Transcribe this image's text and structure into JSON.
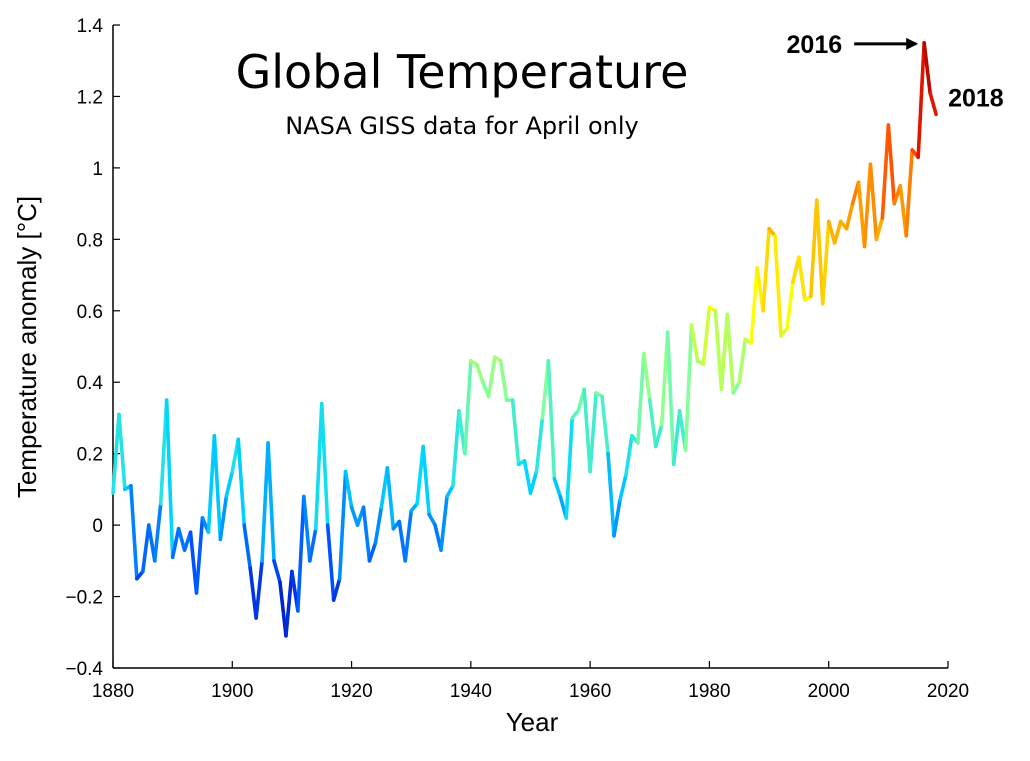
{
  "chart_data": {
    "type": "line",
    "title": "Global Temperature",
    "subtitle": "NASA GISS data for April only",
    "xlabel": "Year",
    "ylabel": "Temperature anomaly [°C]",
    "xlim": [
      1880,
      2020
    ],
    "ylim": [
      -0.4,
      1.4
    ],
    "xticks": [
      1880,
      1900,
      1920,
      1940,
      1960,
      1980,
      2000,
      2020
    ],
    "xtick_labels": [
      "1880",
      "1900",
      "1920",
      "1940",
      "1960",
      "1980",
      "2000",
      "2020"
    ],
    "yticks": [
      -0.4,
      -0.2,
      0,
      0.2,
      0.4,
      0.6,
      0.8,
      1,
      1.2,
      1.4
    ],
    "ytick_labels": [
      "−0.4",
      "−0.2",
      "0",
      "0.2",
      "0.4",
      "0.6",
      "0.8",
      "1",
      "1.2",
      "1.4"
    ],
    "grid": false,
    "colormap": [
      "#0000a8",
      "#0050ff",
      "#00d8ff",
      "#80ffa0",
      "#ffff00",
      "#ffa000",
      "#ff2000",
      "#a00000"
    ],
    "color_range": [
      -0.35,
      1.35
    ],
    "annotations": [
      {
        "text": "2016",
        "x": 2016,
        "y": 1.35,
        "arrow": true
      },
      {
        "text": "2018",
        "x": 2018,
        "y": 1.15,
        "arrow": false
      }
    ],
    "series": [
      {
        "x": [
          1880,
          1881,
          1882,
          1883,
          1884,
          1885,
          1886,
          1887,
          1888,
          1889,
          1890,
          1891,
          1892,
          1893,
          1894,
          1895,
          1896,
          1897,
          1898,
          1899,
          1900,
          1901,
          1902,
          1903,
          1904,
          1905,
          1906,
          1907,
          1908,
          1909,
          1910,
          1911,
          1912,
          1913,
          1914,
          1915,
          1916,
          1917,
          1918,
          1919,
          1920,
          1921,
          1922,
          1923,
          1924,
          1925,
          1926,
          1927,
          1928,
          1929,
          1930,
          1931,
          1932,
          1933,
          1934,
          1935,
          1936,
          1937,
          1938,
          1939,
          1940,
          1941,
          1942,
          1943,
          1944,
          1945,
          1946,
          1947,
          1948,
          1949,
          1950,
          1951,
          1952,
          1953,
          1954,
          1955,
          1956,
          1957,
          1958,
          1959,
          1960,
          1961,
          1962,
          1963,
          1964,
          1965,
          1966,
          1967,
          1968,
          1969,
          1970,
          1971,
          1972,
          1973,
          1974,
          1975,
          1976,
          1977,
          1978,
          1979,
          1980,
          1981,
          1982,
          1983,
          1984,
          1985,
          1986,
          1987,
          1988,
          1989,
          1990,
          1991,
          1992,
          1993,
          1994,
          1995,
          1996,
          1997,
          1998,
          1999,
          2000,
          2001,
          2002,
          2003,
          2004,
          2005,
          2006,
          2007,
          2008,
          2009,
          2010,
          2011,
          2012,
          2013,
          2014,
          2015,
          2016,
          2017,
          2018
        ],
        "values": [
          0.09,
          0.31,
          0.1,
          0.11,
          -0.15,
          -0.13,
          0.0,
          -0.1,
          0.06,
          0.35,
          -0.09,
          -0.01,
          -0.07,
          -0.02,
          -0.19,
          0.02,
          -0.02,
          0.25,
          -0.04,
          0.08,
          0.15,
          0.24,
          0.0,
          -0.12,
          -0.26,
          -0.1,
          0.23,
          -0.1,
          -0.16,
          -0.31,
          -0.13,
          -0.24,
          0.08,
          -0.1,
          -0.01,
          0.34,
          0.0,
          -0.21,
          -0.15,
          0.15,
          0.05,
          0.0,
          0.05,
          -0.1,
          -0.05,
          0.05,
          0.16,
          -0.01,
          0.01,
          -0.1,
          0.04,
          0.06,
          0.22,
          0.03,
          0.0,
          -0.07,
          0.08,
          0.11,
          0.32,
          0.2,
          0.46,
          0.45,
          0.4,
          0.36,
          0.47,
          0.46,
          0.35,
          0.35,
          0.17,
          0.18,
          0.09,
          0.15,
          0.3,
          0.46,
          0.13,
          0.08,
          0.02,
          0.3,
          0.32,
          0.38,
          0.15,
          0.37,
          0.36,
          0.2,
          -0.03,
          0.07,
          0.14,
          0.25,
          0.23,
          0.48,
          0.35,
          0.22,
          0.28,
          0.54,
          0.17,
          0.32,
          0.21,
          0.56,
          0.46,
          0.45,
          0.61,
          0.6,
          0.38,
          0.59,
          0.37,
          0.4,
          0.52,
          0.51,
          0.72,
          0.6,
          0.83,
          0.81,
          0.53,
          0.55,
          0.68,
          0.75,
          0.63,
          0.64,
          0.91,
          0.62,
          0.85,
          0.79,
          0.85,
          0.83,
          0.9,
          0.96,
          0.78,
          1.01,
          0.8,
          0.86,
          1.12,
          0.9,
          0.95,
          0.81,
          1.05,
          1.03,
          1.35,
          1.21,
          1.15
        ]
      }
    ]
  }
}
